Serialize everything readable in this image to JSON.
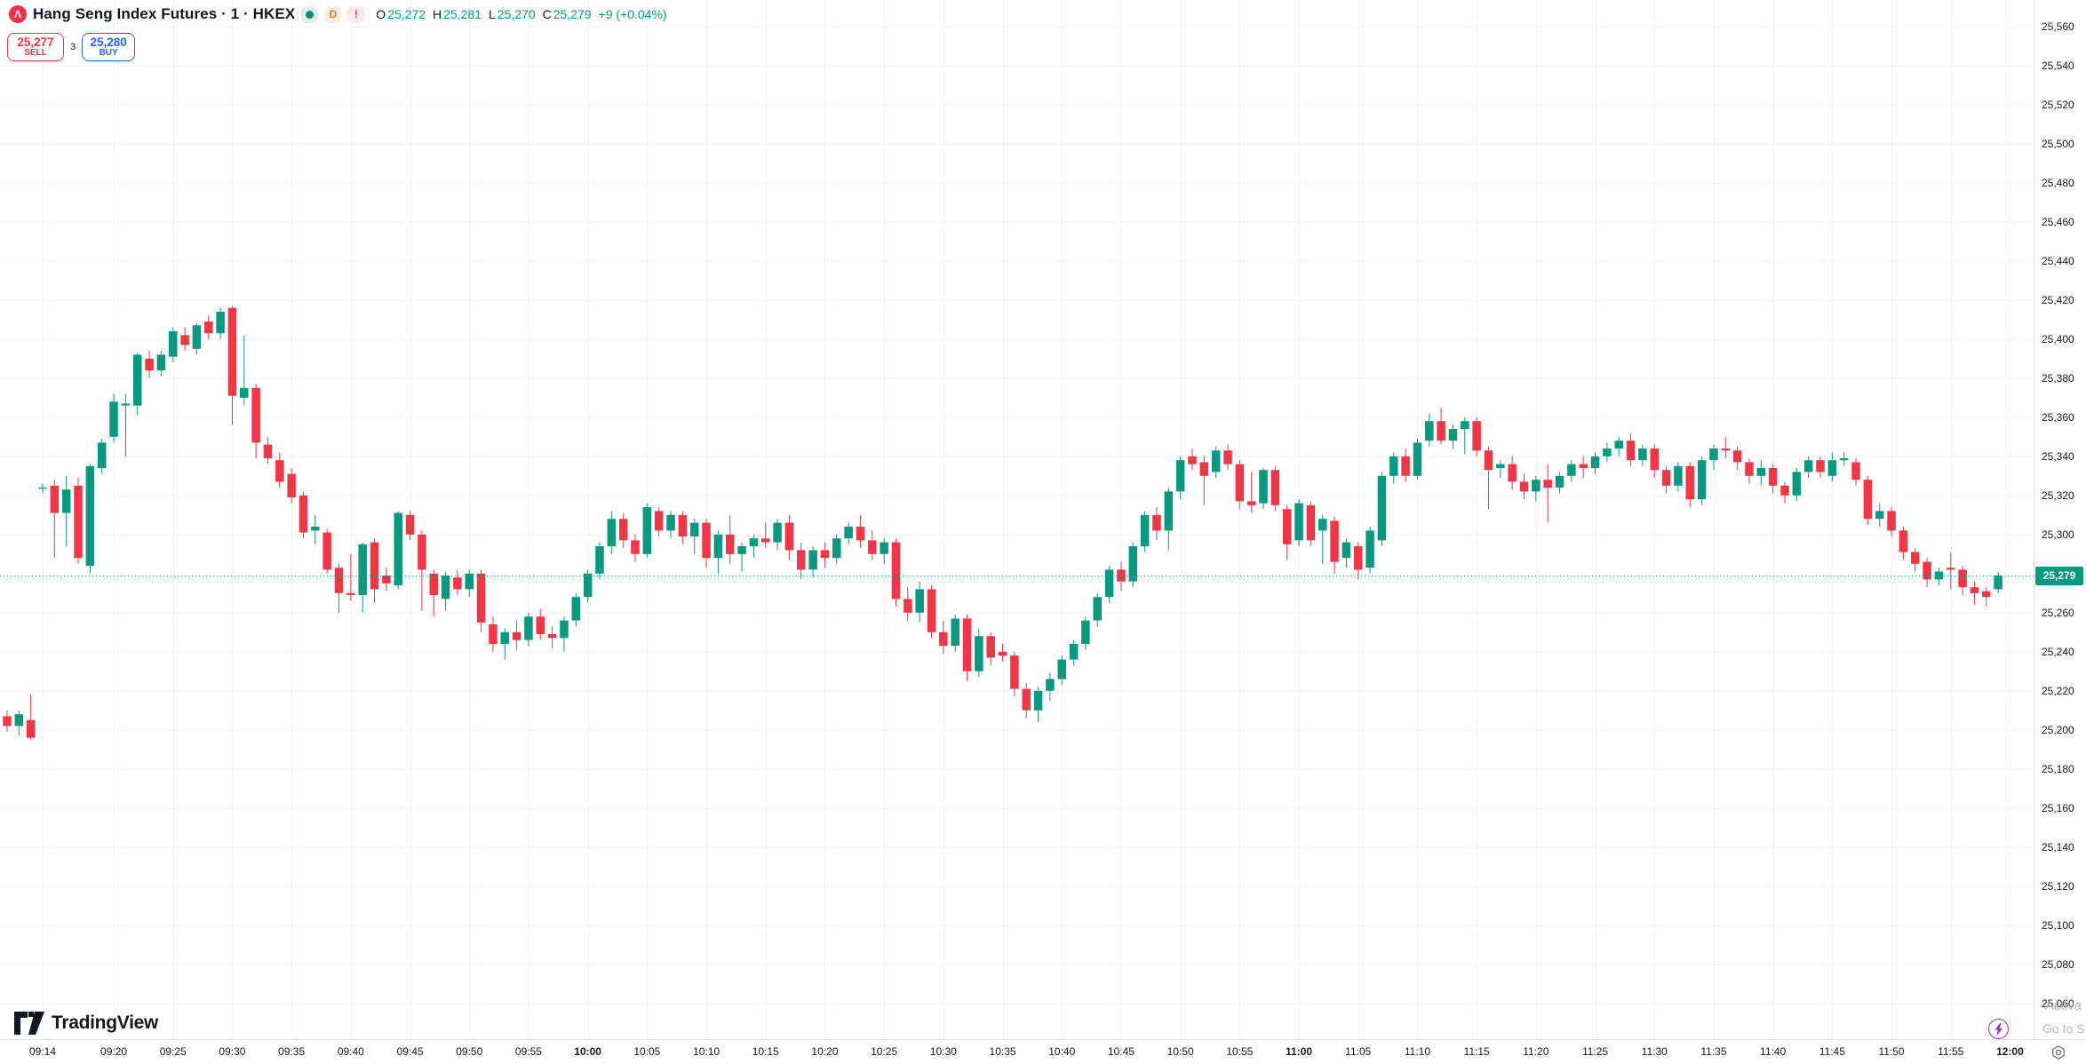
{
  "header": {
    "symbol_title": "Hang Seng Index Futures · 1 · HKEX",
    "badges": {
      "delayed": "D",
      "alert": "!"
    },
    "ohlc": {
      "o_label": "O",
      "o": "25,272",
      "h_label": "H",
      "h": "25,281",
      "l_label": "L",
      "l": "25,270",
      "c_label": "C",
      "c": "25,279",
      "change": "+9 (+0.04%)"
    }
  },
  "trade_panel": {
    "sell_price": "25,277",
    "sell_label": "SELL",
    "spread": "3",
    "buy_price": "25,280",
    "buy_label": "BUY"
  },
  "price_axis": {
    "last_price_label": "25,279",
    "ticks": [
      "25,560",
      "25,540",
      "25,520",
      "25,500",
      "25,480",
      "25,460",
      "25,440",
      "25,420",
      "25,400",
      "25,380",
      "25,360",
      "25,340",
      "25,320",
      "25,300",
      "25,260",
      "25,240",
      "25,220",
      "25,200",
      "25,180",
      "25,160",
      "25,140",
      "25,120",
      "25,100",
      "25,080",
      "25,060"
    ]
  },
  "time_axis": {
    "ticks": [
      {
        "label": "09:14",
        "bold": false
      },
      {
        "label": "09:20",
        "bold": false
      },
      {
        "label": "09:25",
        "bold": false
      },
      {
        "label": "09:30",
        "bold": false
      },
      {
        "label": "09:35",
        "bold": false
      },
      {
        "label": "09:40",
        "bold": false
      },
      {
        "label": "09:45",
        "bold": false
      },
      {
        "label": "09:50",
        "bold": false
      },
      {
        "label": "09:55",
        "bold": false
      },
      {
        "label": "10:00",
        "bold": true
      },
      {
        "label": "10:05",
        "bold": false
      },
      {
        "label": "10:10",
        "bold": false
      },
      {
        "label": "10:15",
        "bold": false
      },
      {
        "label": "10:20",
        "bold": false
      },
      {
        "label": "10:25",
        "bold": false
      },
      {
        "label": "10:30",
        "bold": false
      },
      {
        "label": "10:35",
        "bold": false
      },
      {
        "label": "10:40",
        "bold": false
      },
      {
        "label": "10:45",
        "bold": false
      },
      {
        "label": "10:50",
        "bold": false
      },
      {
        "label": "10:55",
        "bold": false
      },
      {
        "label": "11:00",
        "bold": true
      },
      {
        "label": "11:05",
        "bold": false
      },
      {
        "label": "11:10",
        "bold": false
      },
      {
        "label": "11:15",
        "bold": false
      },
      {
        "label": "11:20",
        "bold": false
      },
      {
        "label": "11:25",
        "bold": false
      },
      {
        "label": "11:30",
        "bold": false
      },
      {
        "label": "11:35",
        "bold": false
      },
      {
        "label": "11:40",
        "bold": false
      },
      {
        "label": "11:45",
        "bold": false
      },
      {
        "label": "11:50",
        "bold": false
      },
      {
        "label": "11:55",
        "bold": false
      },
      {
        "label": "12:00",
        "bold": true
      }
    ]
  },
  "branding": {
    "name": "TradingView"
  },
  "system_watermark": {
    "line1": "Activa",
    "line2": "Go to S"
  },
  "colors": {
    "up": "#089981",
    "down": "#f23645",
    "grid": "#f0f3fa",
    "last_price": "#089981",
    "sell": "#f23645",
    "buy": "#2962ff",
    "lightning": "#a72ac8"
  },
  "chart_data": {
    "type": "candlestick",
    "title": "Hang Seng Index Futures 1-minute, HKEX",
    "interval_minutes": 1,
    "first_candle_time": "09:11",
    "last_candle_time": "12:00",
    "axis_time_ref": "09:14",
    "price_grid": {
      "min": 25060,
      "max": 25560,
      "step": 20
    },
    "time_grid_minutes": 5,
    "last_price": 25279,
    "legend_position": "top-left",
    "grid": true,
    "candles_format": [
      "open",
      "high",
      "low",
      "close"
    ],
    "candles": [
      [
        25207,
        25210,
        25199,
        25202
      ],
      [
        25202,
        25210,
        25197,
        25208
      ],
      [
        25205,
        25218,
        25195,
        25196
      ],
      [
        25324,
        25326,
        25321,
        25324
      ],
      [
        25325,
        25328,
        25288,
        25311
      ],
      [
        25311,
        25330,
        25294,
        25323
      ],
      [
        25325,
        25329,
        25285,
        25288
      ],
      [
        25284,
        25336,
        25280,
        25335
      ],
      [
        25334,
        25349,
        25331,
        25347
      ],
      [
        25350,
        25372,
        25347,
        25368
      ],
      [
        25366,
        25372,
        25340,
        25367
      ],
      [
        25366,
        25393,
        25361,
        25392
      ],
      [
        25390,
        25394,
        25380,
        25384
      ],
      [
        25384,
        25394,
        25381,
        25392
      ],
      [
        25391,
        25406,
        25388,
        25404
      ],
      [
        25402,
        25406,
        25394,
        25397
      ],
      [
        25395,
        25408,
        25392,
        25407
      ],
      [
        25409,
        25412,
        25400,
        25403
      ],
      [
        25403,
        25416,
        25400,
        25414
      ],
      [
        25416,
        25417,
        25356,
        25371
      ],
      [
        25370,
        25402,
        25366,
        25375
      ],
      [
        25375,
        25377,
        25339,
        25347
      ],
      [
        25346,
        25350,
        25336,
        25339
      ],
      [
        25338,
        25342,
        25324,
        25327
      ],
      [
        25331,
        25334,
        25316,
        25319
      ],
      [
        25320,
        25322,
        25298,
        25301
      ],
      [
        25302,
        25310,
        25295,
        25304
      ],
      [
        25301,
        25303,
        25280,
        25282
      ],
      [
        25283,
        25285,
        25260,
        25270
      ],
      [
        25270,
        25290,
        25266,
        25269
      ],
      [
        25269,
        25296,
        25260,
        25295
      ],
      [
        25296,
        25298,
        25265,
        25272
      ],
      [
        25279,
        25283,
        25271,
        25275
      ],
      [
        25274,
        25312,
        25272,
        25311
      ],
      [
        25310,
        25312,
        25297,
        25300
      ],
      [
        25300,
        25302,
        25261,
        25282
      ],
      [
        25280,
        25282,
        25258,
        25269
      ],
      [
        25267,
        25281,
        25261,
        25279
      ],
      [
        25278,
        25282,
        25269,
        25272
      ],
      [
        25272,
        25282,
        25268,
        25280
      ],
      [
        25280,
        25282,
        25250,
        25255
      ],
      [
        25254,
        25258,
        25240,
        25244
      ],
      [
        25244,
        25252,
        25236,
        25250
      ],
      [
        25250,
        25256,
        25241,
        25246
      ],
      [
        25246,
        25260,
        25243,
        25258
      ],
      [
        25258,
        25262,
        25246,
        25249
      ],
      [
        25249,
        25253,
        25242,
        25247
      ],
      [
        25247,
        25258,
        25240,
        25256
      ],
      [
        25256,
        25270,
        25253,
        25268
      ],
      [
        25268,
        25282,
        25265,
        25280
      ],
      [
        25280,
        25296,
        25277,
        25294
      ],
      [
        25294,
        25312,
        25290,
        25308
      ],
      [
        25308,
        25311,
        25293,
        25297
      ],
      [
        25297,
        25300,
        25286,
        25290
      ],
      [
        25290,
        25316,
        25288,
        25314
      ],
      [
        25312,
        25314,
        25299,
        25302
      ],
      [
        25302,
        25312,
        25298,
        25310
      ],
      [
        25310,
        25312,
        25295,
        25299
      ],
      [
        25299,
        25308,
        25290,
        25306
      ],
      [
        25306,
        25308,
        25283,
        25288
      ],
      [
        25288,
        25302,
        25280,
        25300
      ],
      [
        25300,
        25310,
        25285,
        25290
      ],
      [
        25290,
        25296,
        25281,
        25294
      ],
      [
        25294,
        25300,
        25288,
        25298
      ],
      [
        25298,
        25306,
        25293,
        25296
      ],
      [
        25296,
        25308,
        25292,
        25306
      ],
      [
        25306,
        25310,
        25287,
        25292
      ],
      [
        25292,
        25296,
        25277,
        25282
      ],
      [
        25282,
        25294,
        25278,
        25292
      ],
      [
        25292,
        25296,
        25283,
        25288
      ],
      [
        25288,
        25300,
        25285,
        25298
      ],
      [
        25298,
        25306,
        25295,
        25304
      ],
      [
        25304,
        25310,
        25293,
        25297
      ],
      [
        25297,
        25302,
        25287,
        25290
      ],
      [
        25290,
        25298,
        25285,
        25296
      ],
      [
        25296,
        25298,
        25263,
        25267
      ],
      [
        25267,
        25273,
        25256,
        25260
      ],
      [
        25260,
        25276,
        25255,
        25272
      ],
      [
        25272,
        25274,
        25247,
        25250
      ],
      [
        25250,
        25256,
        25239,
        25243
      ],
      [
        25243,
        25259,
        25240,
        25257
      ],
      [
        25257,
        25259,
        25225,
        25230
      ],
      [
        25230,
        25252,
        25227,
        25248
      ],
      [
        25248,
        25250,
        25233,
        25237
      ],
      [
        25240,
        25244,
        25235,
        25238
      ],
      [
        25238,
        25240,
        25217,
        25221
      ],
      [
        25221,
        25224,
        25206,
        25210
      ],
      [
        25210,
        25222,
        25204,
        25220
      ],
      [
        25220,
        25229,
        25215,
        25226
      ],
      [
        25226,
        25238,
        25223,
        25236
      ],
      [
        25236,
        25246,
        25233,
        25244
      ],
      [
        25244,
        25258,
        25241,
        25256
      ],
      [
        25256,
        25270,
        25253,
        25268
      ],
      [
        25268,
        25284,
        25265,
        25282
      ],
      [
        25282,
        25286,
        25271,
        25276
      ],
      [
        25276,
        25296,
        25273,
        25294
      ],
      [
        25294,
        25312,
        25291,
        25310
      ],
      [
        25310,
        25314,
        25297,
        25302
      ],
      [
        25302,
        25324,
        25292,
        25322
      ],
      [
        25322,
        25340,
        25318,
        25338
      ],
      [
        25340,
        25344,
        25333,
        25336
      ],
      [
        25337,
        25340,
        25315,
        25330
      ],
      [
        25332,
        25345,
        25329,
        25343
      ],
      [
        25343,
        25346,
        25333,
        25336
      ],
      [
        25336,
        25338,
        25313,
        25317
      ],
      [
        25317,
        25332,
        25311,
        25315
      ],
      [
        25316,
        25334,
        25313,
        25333
      ],
      [
        25333,
        25335,
        25312,
        25315
      ],
      [
        25313,
        25315,
        25287,
        25295
      ],
      [
        25297,
        25318,
        25294,
        25316
      ],
      [
        25315,
        25317,
        25294,
        25297
      ],
      [
        25302,
        25310,
        25285,
        25308
      ],
      [
        25307,
        25309,
        25280,
        25286
      ],
      [
        25288,
        25298,
        25283,
        25296
      ],
      [
        25294,
        25296,
        25277,
        25282
      ],
      [
        25283,
        25304,
        25280,
        25302
      ],
      [
        25297,
        25332,
        25294,
        25330
      ],
      [
        25330,
        25342,
        25326,
        25340
      ],
      [
        25340,
        25344,
        25327,
        25330
      ],
      [
        25330,
        25349,
        25328,
        25347
      ],
      [
        25348,
        25362,
        25345,
        25358
      ],
      [
        25358,
        25365,
        25346,
        25348
      ],
      [
        25348,
        25356,
        25344,
        25354
      ],
      [
        25354,
        25360,
        25341,
        25358
      ],
      [
        25358,
        25360,
        25340,
        25343
      ],
      [
        25343,
        25345,
        25313,
        25333
      ],
      [
        25334,
        25338,
        25329,
        25336
      ],
      [
        25336,
        25340,
        25323,
        25327
      ],
      [
        25327,
        25331,
        25318,
        25322
      ],
      [
        25322,
        25330,
        25317,
        25328
      ],
      [
        25328,
        25336,
        25306,
        25324
      ],
      [
        25324,
        25332,
        25321,
        25330
      ],
      [
        25330,
        25338,
        25327,
        25336
      ],
      [
        25336,
        25340,
        25329,
        25334
      ],
      [
        25334,
        25342,
        25331,
        25340
      ],
      [
        25340,
        25347,
        25337,
        25344
      ],
      [
        25344,
        25350,
        25340,
        25348
      ],
      [
        25348,
        25352,
        25335,
        25338
      ],
      [
        25338,
        25346,
        25335,
        25344
      ],
      [
        25344,
        25346,
        25329,
        25333
      ],
      [
        25333,
        25335,
        25321,
        25325
      ],
      [
        25325,
        25337,
        25322,
        25335
      ],
      [
        25335,
        25337,
        25314,
        25318
      ],
      [
        25318,
        25340,
        25315,
        25338
      ],
      [
        25338,
        25346,
        25333,
        25344
      ],
      [
        25344,
        25350,
        25339,
        25343
      ],
      [
        25343,
        25345,
        25333,
        25337
      ],
      [
        25337,
        25339,
        25326,
        25330
      ],
      [
        25330,
        25338,
        25325,
        25334
      ],
      [
        25334,
        25336,
        25321,
        25325
      ],
      [
        25325,
        25327,
        25316,
        25320
      ],
      [
        25320,
        25334,
        25317,
        25332
      ],
      [
        25332,
        25340,
        25329,
        25338
      ],
      [
        25338,
        25340,
        25329,
        25332
      ],
      [
        25330,
        25342,
        25327,
        25338
      ],
      [
        25338,
        25342,
        25335,
        25339
      ],
      [
        25337,
        25339,
        25325,
        25328
      ],
      [
        25328,
        25330,
        25305,
        25308
      ],
      [
        25308,
        25316,
        25304,
        25312
      ],
      [
        25312,
        25314,
        25299,
        25302
      ],
      [
        25302,
        25304,
        25287,
        25291
      ],
      [
        25291,
        25293,
        25281,
        25285
      ],
      [
        25286,
        25288,
        25273,
        25277
      ],
      [
        25277,
        25283,
        25274,
        25281
      ],
      [
        25283,
        25291,
        25272,
        25282
      ],
      [
        25282,
        25284,
        25269,
        25273
      ],
      [
        25273,
        25276,
        25264,
        25270
      ],
      [
        25271,
        25273,
        25263,
        25268
      ],
      [
        25272,
        25281,
        25270,
        25279
      ]
    ]
  }
}
